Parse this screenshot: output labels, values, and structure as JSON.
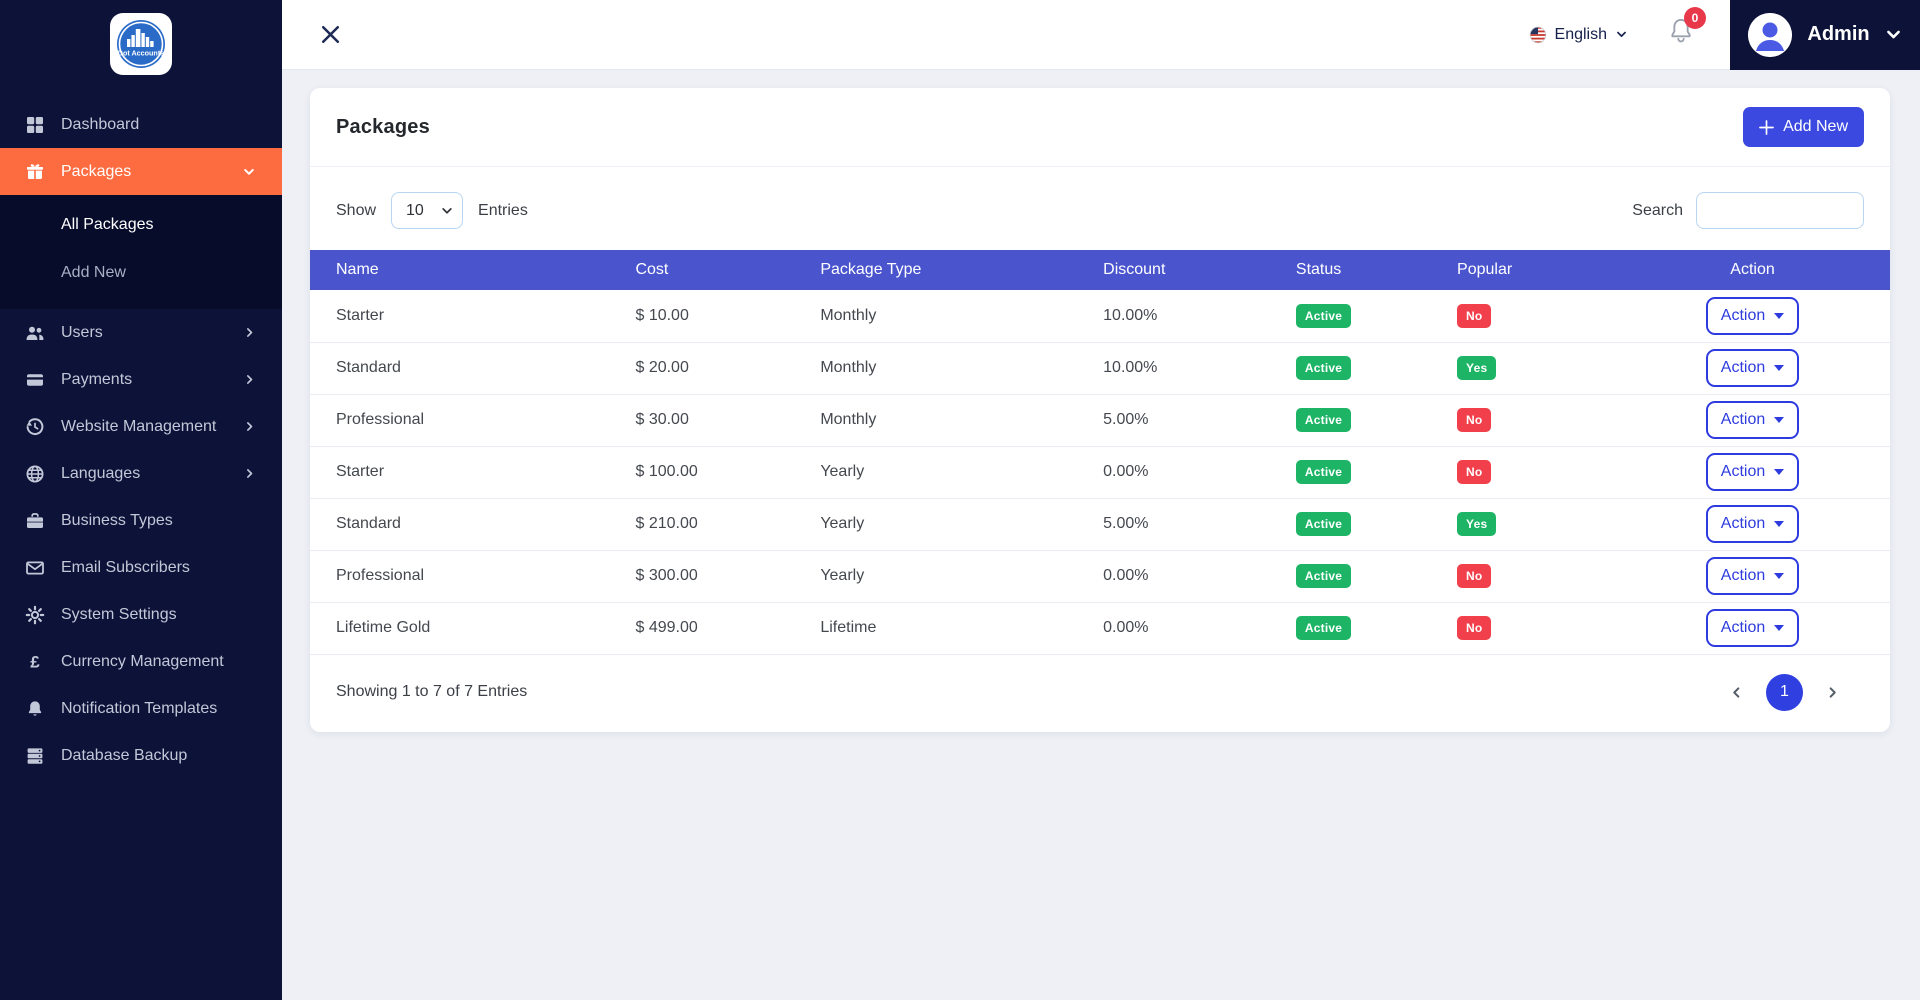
{
  "app": {
    "logo_text": "Dot Accounts"
  },
  "topbar": {
    "language_label": "English",
    "notification_count": "0",
    "user_name": "Admin"
  },
  "sidebar": {
    "items": [
      {
        "label": "Dashboard",
        "icon": "dashboard"
      },
      {
        "label": "Packages",
        "icon": "packages",
        "active": true,
        "expanded": true,
        "children": [
          {
            "label": "All Packages",
            "active": true
          },
          {
            "label": "Add New",
            "active": false
          }
        ]
      },
      {
        "label": "Users",
        "icon": "users",
        "has_children": true
      },
      {
        "label": "Payments",
        "icon": "payments",
        "has_children": true
      },
      {
        "label": "Website Management",
        "icon": "website",
        "has_children": true
      },
      {
        "label": "Languages",
        "icon": "languages",
        "has_children": true
      },
      {
        "label": "Business Types",
        "icon": "business"
      },
      {
        "label": "Email Subscribers",
        "icon": "email"
      },
      {
        "label": "System Settings",
        "icon": "settings"
      },
      {
        "label": "Currency Management",
        "icon": "currency"
      },
      {
        "label": "Notification Templates",
        "icon": "notification"
      },
      {
        "label": "Database Backup",
        "icon": "database"
      }
    ]
  },
  "page": {
    "title": "Packages",
    "add_new_label": "Add New",
    "show_label": "Show",
    "entries_label": "Entries",
    "page_size": "10",
    "search_label": "Search",
    "search_value": ""
  },
  "table": {
    "columns": [
      "Name",
      "Cost",
      "Package Type",
      "Discount",
      "Status",
      "Popular",
      "Action"
    ],
    "action_label": "Action",
    "rows": [
      {
        "name": "Starter",
        "cost": "$ 10.00",
        "package_type": "Monthly",
        "discount": "10.00%",
        "status": "Active",
        "popular": "No"
      },
      {
        "name": "Standard",
        "cost": "$ 20.00",
        "package_type": "Monthly",
        "discount": "10.00%",
        "status": "Active",
        "popular": "Yes"
      },
      {
        "name": "Professional",
        "cost": "$ 30.00",
        "package_type": "Monthly",
        "discount": "5.00%",
        "status": "Active",
        "popular": "No"
      },
      {
        "name": "Starter",
        "cost": "$ 100.00",
        "package_type": "Yearly",
        "discount": "0.00%",
        "status": "Active",
        "popular": "No"
      },
      {
        "name": "Standard",
        "cost": "$ 210.00",
        "package_type": "Yearly",
        "discount": "5.00%",
        "status": "Active",
        "popular": "Yes"
      },
      {
        "name": "Professional",
        "cost": "$ 300.00",
        "package_type": "Yearly",
        "discount": "0.00%",
        "status": "Active",
        "popular": "No"
      },
      {
        "name": "Lifetime Gold",
        "cost": "$ 499.00",
        "package_type": "Lifetime",
        "discount": "0.00%",
        "status": "Active",
        "popular": "No"
      }
    ]
  },
  "footer": {
    "summary": "Showing 1 to 7 of 7 Entries",
    "current_page": "1"
  },
  "colors": {
    "sidebar_bg": "#0c1238",
    "submenu_bg": "#070c2a",
    "accent_orange": "#fd6b40",
    "table_header": "#4a55cd",
    "primary_blue": "#3b49e0",
    "badge_green": "#1db465",
    "badge_red": "#f1404b",
    "action_blue": "#2e3cdf"
  }
}
